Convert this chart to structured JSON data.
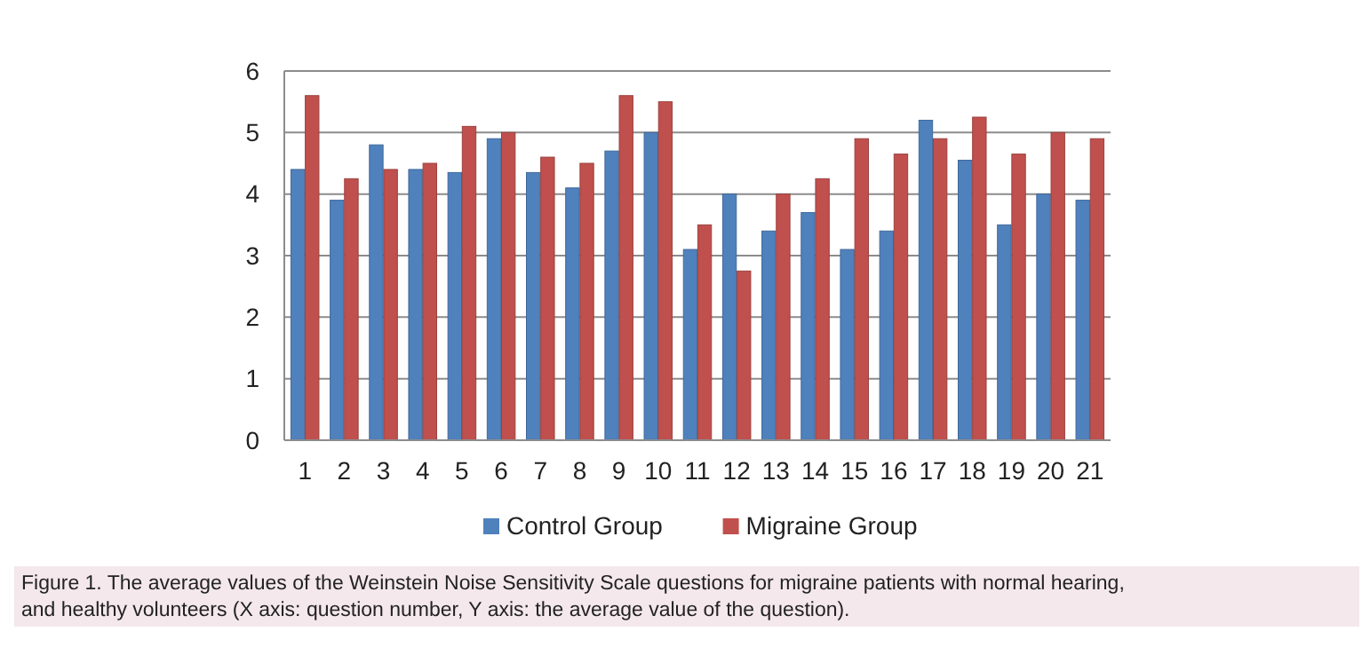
{
  "chart_data": {
    "type": "bar",
    "categories": [
      "1",
      "2",
      "3",
      "4",
      "5",
      "6",
      "7",
      "8",
      "9",
      "10",
      "11",
      "12",
      "13",
      "14",
      "15",
      "16",
      "17",
      "18",
      "19",
      "20",
      "21"
    ],
    "series": [
      {
        "name": "Control Group",
        "color": "#4f81bd",
        "values": [
          4.4,
          3.9,
          4.8,
          4.4,
          4.35,
          4.9,
          4.35,
          4.1,
          4.7,
          5.0,
          3.1,
          4.0,
          3.4,
          3.7,
          3.1,
          3.4,
          5.2,
          4.55,
          3.5,
          4.0,
          3.9
        ]
      },
      {
        "name": "Migraine  Group",
        "color": "#c0504d",
        "values": [
          5.6,
          4.25,
          4.4,
          4.5,
          5.1,
          5.0,
          4.6,
          4.5,
          5.6,
          5.5,
          3.5,
          2.75,
          4.0,
          4.25,
          4.9,
          4.65,
          4.9,
          5.25,
          4.65,
          5.0,
          4.9
        ]
      }
    ],
    "ylim": [
      0,
      6
    ],
    "yticks": [
      0,
      1,
      2,
      3,
      4,
      5,
      6
    ],
    "grid": "y",
    "legend": "bottom",
    "annotations": [
      "Figure 1.  The average values of the Weinstein Noise Sensitivity Scale questions for migraine patients with normal hearing, and healthy volunteers (X axis: question number, Y axis: the average value of the question)."
    ]
  }
}
